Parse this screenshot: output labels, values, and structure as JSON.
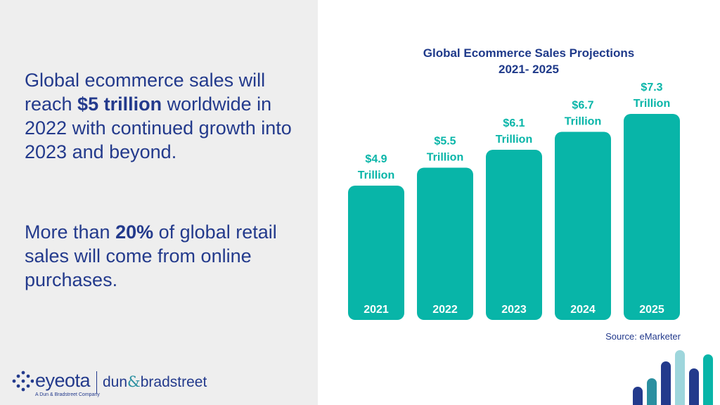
{
  "left": {
    "para1": {
      "before": "Global ecommerce sales will reach ",
      "bold": "$5 trillion",
      "after": " worldwide in 2022 with continued growth into 2023 and beyond."
    },
    "para2": {
      "before": "More than ",
      "bold": "20%",
      "after": " of global retail sales will come from online purchases."
    }
  },
  "logos": {
    "eyeota": "eyeota",
    "eyeota_tagline": "A Dun & Bradstreet Company",
    "dnb_left": "dun",
    "dnb_amp": "&",
    "dnb_right": "bradstreet"
  },
  "source": "Source: eMarketer",
  "colors": {
    "bar": "#08b5a8",
    "title": "#1f3a8a",
    "text": "#233a8c"
  },
  "chart_data": {
    "type": "bar",
    "title_line1": "Global Ecommerce Sales Projections",
    "title_line2": "2021- 2025",
    "categories": [
      "2021",
      "2022",
      "2023",
      "2024",
      "2025"
    ],
    "values": [
      4.9,
      5.5,
      6.1,
      6.7,
      7.3
    ],
    "value_labels": [
      "$4.9",
      "$5.5",
      "$6.1",
      "$6.7",
      "$7.3"
    ],
    "unit_label": "Trillion",
    "ylim": [
      0,
      7.3
    ],
    "grid": false,
    "legend": "none"
  }
}
